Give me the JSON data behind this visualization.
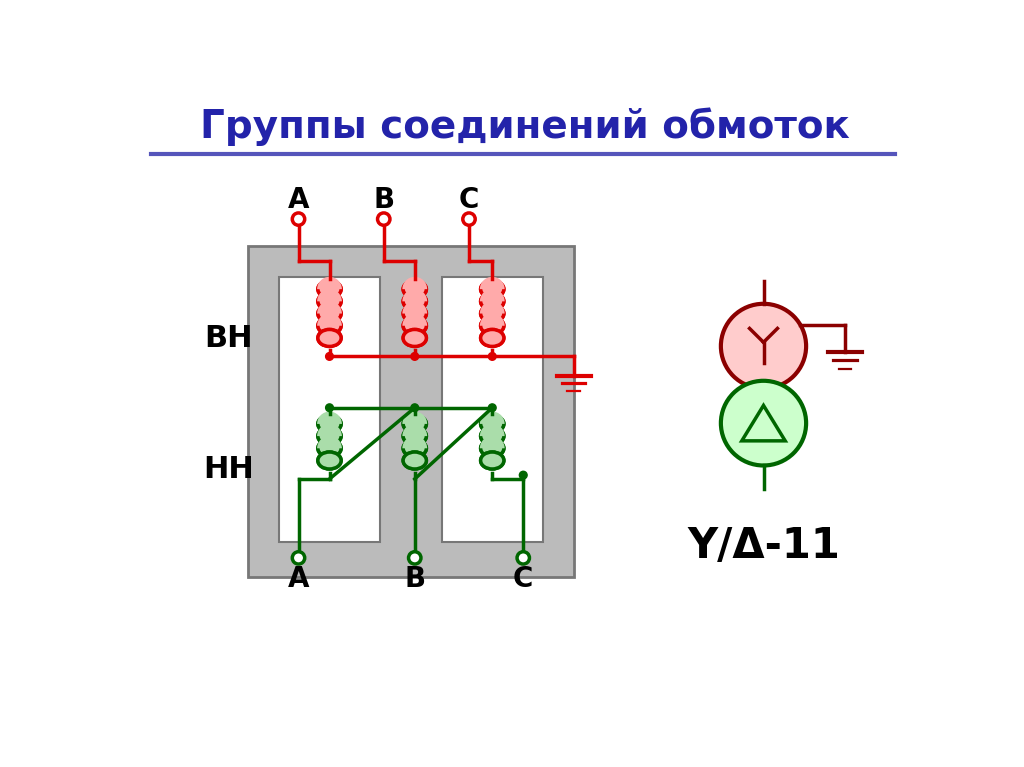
{
  "title": "Группы соединений обмоток",
  "title_color": "#2323aa",
  "title_fontsize": 28,
  "bg_color": "#ffffff",
  "red_color": "#dd0000",
  "dark_red_color": "#8b0000",
  "green_color": "#006600",
  "light_red_fill": "#ffaaaa",
  "light_green_fill": "#aaddaa",
  "gray_outer": "#bbbbbb",
  "gray_inner": "#cccccc",
  "dark_gray": "#777777",
  "line_color": "#5555bb",
  "label_BH": "ВН",
  "label_NN": "НН",
  "label_YD": "Y/Δ-11"
}
